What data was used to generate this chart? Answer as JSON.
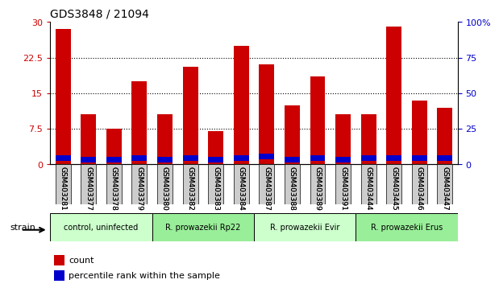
{
  "title": "GDS3848 / 21094",
  "samples": [
    "GSM403281",
    "GSM403377",
    "GSM403378",
    "GSM403379",
    "GSM403380",
    "GSM403382",
    "GSM403383",
    "GSM403384",
    "GSM403387",
    "GSM403388",
    "GSM403389",
    "GSM403391",
    "GSM403444",
    "GSM403445",
    "GSM403446",
    "GSM403447"
  ],
  "count_values": [
    28.5,
    10.5,
    7.5,
    17.5,
    10.5,
    20.5,
    7.0,
    25.0,
    21.0,
    12.5,
    18.5,
    10.5,
    10.5,
    29.0,
    13.5,
    12.0
  ],
  "percentile_values": [
    4.5,
    3.5,
    3.5,
    4.5,
    3.5,
    4.5,
    3.5,
    4.5,
    5.5,
    3.5,
    4.5,
    3.5,
    4.5,
    4.5,
    4.5,
    4.5
  ],
  "bar_color_count": "#cc0000",
  "bar_color_percentile": "#0000cc",
  "ylim_left": [
    0,
    30
  ],
  "ylim_right": [
    0,
    100
  ],
  "yticks_left": [
    0,
    7.5,
    15,
    22.5,
    30
  ],
  "ytick_labels_left": [
    "0",
    "7.5",
    "15",
    "22.5",
    "30"
  ],
  "yticks_right": [
    0,
    25,
    50,
    75,
    100
  ],
  "ytick_labels_right": [
    "0",
    "25",
    "50",
    "75",
    "100%"
  ],
  "groups": [
    {
      "label": "control, uninfected",
      "start": 0,
      "end": 4,
      "color": "#ccffcc"
    },
    {
      "label": "R. prowazekii Rp22",
      "start": 4,
      "end": 8,
      "color": "#99ee99"
    },
    {
      "label": "R. prowazekii Evir",
      "start": 8,
      "end": 12,
      "color": "#ccffcc"
    },
    {
      "label": "R. prowazekii Erus",
      "start": 12,
      "end": 16,
      "color": "#99ee99"
    }
  ],
  "strain_label": "strain",
  "legend_count_label": "count",
  "legend_percentile_label": "percentile rank within the sample",
  "bar_width": 0.6,
  "bg_color": "#ffffff",
  "grid_color": "#000000",
  "tick_color_left": "#cc0000",
  "tick_color_right": "#0000cc",
  "xticklabel_bg": "#cccccc"
}
